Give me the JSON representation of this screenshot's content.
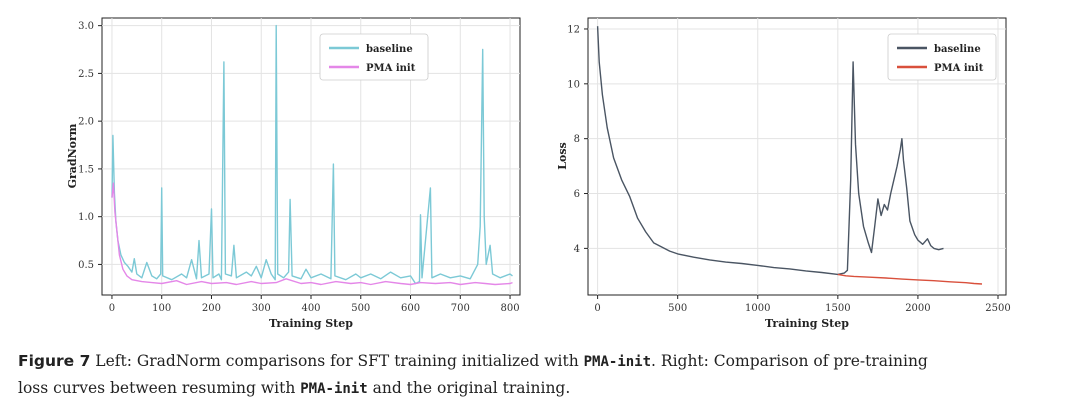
{
  "caption": {
    "label": "Figure 7",
    "line1_a": " Left: GradNorm comparisons for SFT training initialized with ",
    "code1": "PMA-init",
    "line1_b": ". Right: Comparison of pre-training",
    "line2_a": "loss curves between resuming with ",
    "code2": "PMA-init",
    "line2_b": " and the original training."
  },
  "colors": {
    "left_baseline": "#7cc9d6",
    "left_pma": "#e487e8",
    "right_baseline": "#4a5563",
    "right_pma": "#d9503c"
  },
  "chart_data": [
    {
      "type": "line",
      "title": "",
      "xlabel": "Training Step",
      "ylabel": "GradNorm",
      "xlim": [
        -20,
        820
      ],
      "ylim": [
        0.18,
        3.08
      ],
      "xticks": [
        0,
        100,
        200,
        300,
        400,
        500,
        600,
        700,
        800
      ],
      "yticks": [
        0.5,
        1.0,
        1.5,
        2.0,
        2.5,
        3.0
      ],
      "xtick_labels": [
        "0",
        "100",
        "200",
        "300",
        "400",
        "500",
        "600",
        "700",
        "800"
      ],
      "ytick_labels": [
        "0.5",
        "1.0",
        "1.5",
        "2.0",
        "2.5",
        "3.0"
      ],
      "grid": true,
      "legend_position": "top-right",
      "series": [
        {
          "name": "baseline",
          "color_key": "left_baseline",
          "points": [
            [
              0,
              1.2
            ],
            [
              2,
              1.85
            ],
            [
              5,
              1.25
            ],
            [
              8,
              0.95
            ],
            [
              12,
              0.75
            ],
            [
              18,
              0.6
            ],
            [
              25,
              0.52
            ],
            [
              32,
              0.48
            ],
            [
              40,
              0.42
            ],
            [
              45,
              0.56
            ],
            [
              50,
              0.4
            ],
            [
              60,
              0.36
            ],
            [
              70,
              0.52
            ],
            [
              80,
              0.38
            ],
            [
              90,
              0.35
            ],
            [
              98,
              0.4
            ],
            [
              100,
              1.3
            ],
            [
              102,
              0.38
            ],
            [
              120,
              0.34
            ],
            [
              140,
              0.4
            ],
            [
              150,
              0.36
            ],
            [
              160,
              0.55
            ],
            [
              170,
              0.35
            ],
            [
              175,
              0.75
            ],
            [
              180,
              0.36
            ],
            [
              195,
              0.4
            ],
            [
              200,
              1.08
            ],
            [
              203,
              0.36
            ],
            [
              215,
              0.4
            ],
            [
              220,
              0.34
            ],
            [
              225,
              2.62
            ],
            [
              228,
              0.4
            ],
            [
              240,
              0.38
            ],
            [
              245,
              0.7
            ],
            [
              250,
              0.36
            ],
            [
              270,
              0.42
            ],
            [
              280,
              0.38
            ],
            [
              290,
              0.48
            ],
            [
              300,
              0.36
            ],
            [
              310,
              0.55
            ],
            [
              320,
              0.4
            ],
            [
              328,
              0.34
            ],
            [
              330,
              3.0
            ],
            [
              333,
              0.4
            ],
            [
              345,
              0.36
            ],
            [
              355,
              0.42
            ],
            [
              358,
              1.18
            ],
            [
              362,
              0.38
            ],
            [
              380,
              0.35
            ],
            [
              390,
              0.45
            ],
            [
              400,
              0.36
            ],
            [
              420,
              0.4
            ],
            [
              440,
              0.35
            ],
            [
              445,
              1.55
            ],
            [
              448,
              0.38
            ],
            [
              470,
              0.34
            ],
            [
              490,
              0.4
            ],
            [
              500,
              0.36
            ],
            [
              520,
              0.4
            ],
            [
              540,
              0.35
            ],
            [
              560,
              0.42
            ],
            [
              580,
              0.36
            ],
            [
              600,
              0.38
            ],
            [
              610,
              0.3
            ],
            [
              618,
              0.32
            ],
            [
              620,
              1.02
            ],
            [
              623,
              0.36
            ],
            [
              640,
              1.3
            ],
            [
              643,
              0.36
            ],
            [
              660,
              0.4
            ],
            [
              680,
              0.36
            ],
            [
              700,
              0.38
            ],
            [
              720,
              0.35
            ],
            [
              735,
              0.5
            ],
            [
              740,
              0.9
            ],
            [
              745,
              2.75
            ],
            [
              748,
              1.0
            ],
            [
              752,
              0.5
            ],
            [
              760,
              0.7
            ],
            [
              765,
              0.4
            ],
            [
              780,
              0.36
            ],
            [
              800,
              0.4
            ],
            [
              805,
              0.38
            ]
          ]
        },
        {
          "name": "PMA init",
          "color_key": "left_pma",
          "points": [
            [
              0,
              1.2
            ],
            [
              3,
              1.35
            ],
            [
              6,
              1.05
            ],
            [
              10,
              0.85
            ],
            [
              15,
              0.6
            ],
            [
              22,
              0.45
            ],
            [
              30,
              0.38
            ],
            [
              40,
              0.34
            ],
            [
              60,
              0.32
            ],
            [
              80,
              0.31
            ],
            [
              100,
              0.3
            ],
            [
              130,
              0.33
            ],
            [
              150,
              0.29
            ],
            [
              180,
              0.32
            ],
            [
              200,
              0.3
            ],
            [
              230,
              0.31
            ],
            [
              250,
              0.29
            ],
            [
              280,
              0.32
            ],
            [
              300,
              0.3
            ],
            [
              330,
              0.31
            ],
            [
              350,
              0.35
            ],
            [
              380,
              0.3
            ],
            [
              400,
              0.31
            ],
            [
              420,
              0.29
            ],
            [
              450,
              0.32
            ],
            [
              480,
              0.3
            ],
            [
              500,
              0.31
            ],
            [
              520,
              0.29
            ],
            [
              550,
              0.32
            ],
            [
              580,
              0.3
            ],
            [
              600,
              0.29
            ],
            [
              620,
              0.31
            ],
            [
              650,
              0.3
            ],
            [
              680,
              0.31
            ],
            [
              700,
              0.29
            ],
            [
              730,
              0.31
            ],
            [
              750,
              0.3
            ],
            [
              770,
              0.29
            ],
            [
              800,
              0.3
            ],
            [
              805,
              0.31
            ]
          ]
        }
      ]
    },
    {
      "type": "line",
      "title": "",
      "xlabel": "Training Step",
      "ylabel": "Loss",
      "xlim": [
        -60,
        2550
      ],
      "ylim": [
        2.3,
        12.4
      ],
      "xticks": [
        0,
        500,
        1000,
        1500,
        2000,
        2500
      ],
      "yticks": [
        4,
        6,
        8,
        10,
        12
      ],
      "xtick_labels": [
        "0",
        "500",
        "1000",
        "1500",
        "2000",
        "2500"
      ],
      "ytick_labels": [
        "4",
        "6",
        "8",
        "10",
        "12"
      ],
      "grid": true,
      "legend_position": "top-right",
      "series": [
        {
          "name": "baseline",
          "color_key": "right_baseline",
          "points": [
            [
              0,
              12.1
            ],
            [
              10,
              10.8
            ],
            [
              30,
              9.6
            ],
            [
              60,
              8.4
            ],
            [
              100,
              7.3
            ],
            [
              150,
              6.5
            ],
            [
              200,
              5.9
            ],
            [
              250,
              5.1
            ],
            [
              300,
              4.6
            ],
            [
              350,
              4.2
            ],
            [
              400,
              4.05
            ],
            [
              450,
              3.9
            ],
            [
              500,
              3.8
            ],
            [
              600,
              3.68
            ],
            [
              700,
              3.58
            ],
            [
              800,
              3.5
            ],
            [
              900,
              3.45
            ],
            [
              1000,
              3.38
            ],
            [
              1100,
              3.3
            ],
            [
              1200,
              3.25
            ],
            [
              1300,
              3.18
            ],
            [
              1400,
              3.12
            ],
            [
              1500,
              3.05
            ],
            [
              1540,
              3.1
            ],
            [
              1560,
              3.2
            ],
            [
              1580,
              6.5
            ],
            [
              1595,
              10.8
            ],
            [
              1610,
              7.8
            ],
            [
              1630,
              6.0
            ],
            [
              1660,
              4.8
            ],
            [
              1690,
              4.2
            ],
            [
              1710,
              3.85
            ],
            [
              1730,
              4.8
            ],
            [
              1750,
              5.8
            ],
            [
              1770,
              5.2
            ],
            [
              1790,
              5.6
            ],
            [
              1810,
              5.4
            ],
            [
              1830,
              6.0
            ],
            [
              1850,
              6.5
            ],
            [
              1870,
              7.0
            ],
            [
              1890,
              7.6
            ],
            [
              1900,
              8.0
            ],
            [
              1910,
              7.2
            ],
            [
              1930,
              6.2
            ],
            [
              1950,
              5.0
            ],
            [
              1980,
              4.5
            ],
            [
              2000,
              4.3
            ],
            [
              2030,
              4.15
            ],
            [
              2060,
              4.35
            ],
            [
              2080,
              4.1
            ],
            [
              2100,
              4.0
            ],
            [
              2130,
              3.95
            ],
            [
              2160,
              4.0
            ]
          ]
        },
        {
          "name": "PMA init",
          "color_key": "right_pma",
          "points": [
            [
              1500,
              3.05
            ],
            [
              1550,
              3.0
            ],
            [
              1600,
              2.98
            ],
            [
              1700,
              2.95
            ],
            [
              1800,
              2.92
            ],
            [
              1900,
              2.88
            ],
            [
              2000,
              2.85
            ],
            [
              2100,
              2.82
            ],
            [
              2200,
              2.78
            ],
            [
              2300,
              2.75
            ],
            [
              2350,
              2.72
            ],
            [
              2400,
              2.7
            ]
          ]
        }
      ]
    }
  ]
}
